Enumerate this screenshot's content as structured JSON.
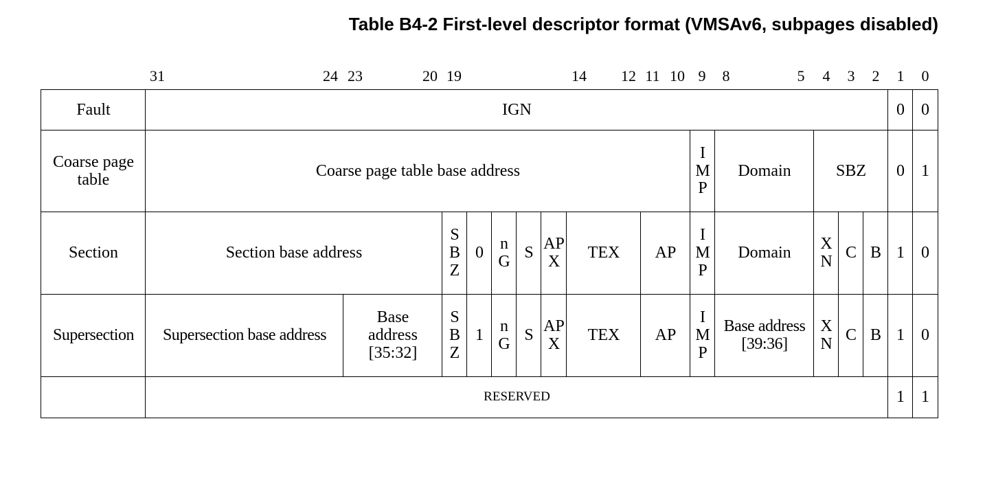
{
  "title": "Table B4-2 First-level descriptor format (VMSAv6, subpages disabled)",
  "bit_labels": [
    "31",
    "24",
    "23",
    "20",
    "19",
    "14",
    "12",
    "11",
    "10",
    "9",
    "8",
    "5",
    "4",
    "3",
    "2",
    "1",
    "0"
  ],
  "rows": [
    {
      "name": "Fault",
      "fields": [
        "IGN",
        "0",
        "0"
      ]
    },
    {
      "name": "Coarse page\ntable",
      "fields": [
        "Coarse page table base address",
        "I\nM\nP",
        "Domain",
        "SBZ",
        "0",
        "1"
      ]
    },
    {
      "name": "Section",
      "fields": [
        "Section base address",
        "S\nB\nZ",
        "0",
        "n\nG",
        "S",
        "AP\nX",
        "TEX",
        "AP",
        "I\nM\nP",
        "Domain",
        "X\nN",
        "C",
        "B",
        "1",
        "0"
      ]
    },
    {
      "name": "Supersection",
      "fields": [
        "Supersection base address",
        "Base\naddress\n[35:32]",
        "S\nB\nZ",
        "1",
        "n\nG",
        "S",
        "AP\nX",
        "TEX",
        "AP",
        "I\nM\nP",
        "Base address\n[39:36]",
        "X\nN",
        "C",
        "B",
        "1",
        "0"
      ]
    },
    {
      "name": "",
      "fields": [
        "RESERVED",
        "1",
        "1"
      ]
    }
  ]
}
